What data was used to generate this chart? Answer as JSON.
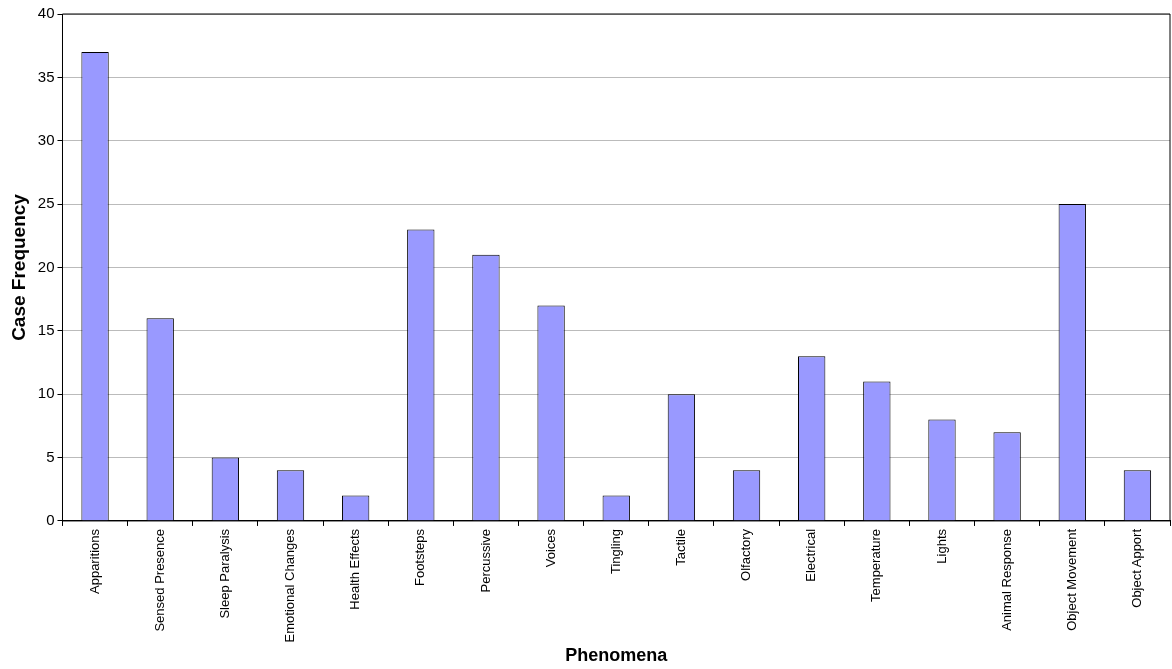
{
  "chart_data": {
    "type": "bar",
    "xlabel": "Phenomena",
    "ylabel": "Case Frequency",
    "categories": [
      "Apparitions",
      "Sensed Presence",
      "Sleep Paralysis",
      "Emotional Changes",
      "Health Effects",
      "Footsteps",
      "Percussive",
      "Voices",
      "Tingling",
      "Tactile",
      "Olfactory",
      "Electrical",
      "Temperature",
      "Lights",
      "Animal Response",
      "Object Movement",
      "Object Apport"
    ],
    "values": [
      37,
      16,
      5,
      4,
      2,
      23,
      21,
      17,
      2,
      10,
      4,
      13,
      11,
      8,
      7,
      25,
      4
    ],
    "color": "#9999ff",
    "ylim": [
      0,
      40
    ],
    "yticks": [
      0,
      5,
      10,
      15,
      20,
      25,
      30,
      35,
      40
    ],
    "grid": "y",
    "legend": false
  }
}
